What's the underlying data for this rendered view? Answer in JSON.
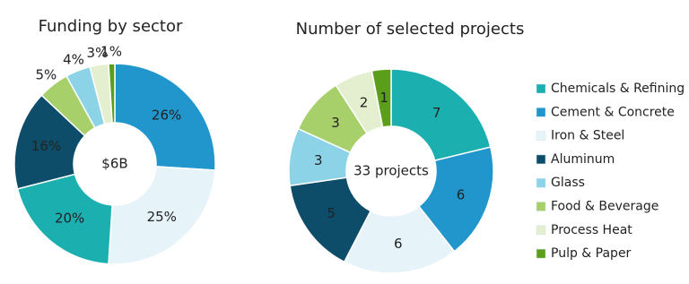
{
  "chart_data": [
    {
      "type": "donut",
      "title": "Funding by sector",
      "center_label": "$6B",
      "categories": [
        "Cement & Concrete",
        "Iron & Steel",
        "Chemicals & Refining",
        "Aluminum",
        "Food & Beverage",
        "Glass",
        "Process Heat",
        "Pulp & Paper"
      ],
      "values": [
        26,
        25,
        20,
        16,
        5,
        4,
        3,
        1
      ],
      "value_labels": [
        "26%",
        "25%",
        "20%",
        "16%",
        "5%",
        "4%",
        "3%",
        "1%"
      ],
      "colors": [
        "#2196cc",
        "#e6f4fa",
        "#1bafb0",
        "#0e4d6a",
        "#a7cf6a",
        "#8dd3e8",
        "#e3efcf",
        "#5a9e1a"
      ]
    },
    {
      "type": "donut",
      "title": "Number of selected projects",
      "center_label": "33 projects",
      "categories": [
        "Chemicals & Refining",
        "Cement & Concrete",
        "Iron & Steel",
        "Aluminum",
        "Glass",
        "Food & Beverage",
        "Process Heat",
        "Pulp & Paper"
      ],
      "values": [
        7,
        6,
        6,
        5,
        3,
        3,
        2,
        1
      ],
      "colors": [
        "#1bafb0",
        "#2196cc",
        "#e6f4fa",
        "#0e4d6a",
        "#8dd3e8",
        "#a7cf6a",
        "#e3efcf",
        "#5a9e1a"
      ],
      "legend": "right"
    }
  ]
}
